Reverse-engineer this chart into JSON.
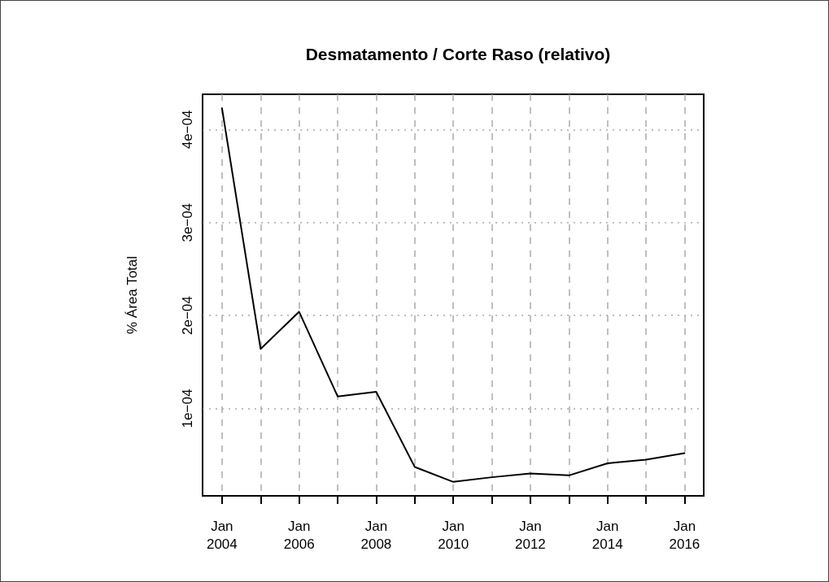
{
  "chart_data": {
    "type": "line",
    "title": "Desmatamento / Corte Raso (relativo)",
    "ylabel": "% Área Total",
    "x": [
      "2004-01",
      "2005-01",
      "2006-01",
      "2007-01",
      "2008-01",
      "2009-01",
      "2010-01",
      "2011-01",
      "2012-01",
      "2013-01",
      "2014-01",
      "2015-01",
      "2016-01"
    ],
    "series": [
      {
        "color": "#000000",
        "values": [
          0.000423,
          0.000164,
          0.000204,
          0.000113,
          0.000118,
          3.7e-05,
          2.1e-05,
          2.6e-05,
          3e-05,
          2.8e-05,
          4.1e-05,
          4.5e-05,
          5.2e-05
        ]
      }
    ],
    "xlim": [
      "2003-07",
      "2016-07"
    ],
    "xticks": [
      {
        "value": "2004-01",
        "label": "Jan\n2004"
      },
      {
        "value": "2005-01",
        "label": null
      },
      {
        "value": "2006-01",
        "label": "Jan\n2006"
      },
      {
        "value": "2007-01",
        "label": null
      },
      {
        "value": "2008-01",
        "label": "Jan\n2008"
      },
      {
        "value": "2009-01",
        "label": null
      },
      {
        "value": "2010-01",
        "label": "Jan\n2010"
      },
      {
        "value": "2011-01",
        "label": null
      },
      {
        "value": "2012-01",
        "label": "Jan\n2012"
      },
      {
        "value": "2013-01",
        "label": null
      },
      {
        "value": "2014-01",
        "label": "Jan\n2014"
      },
      {
        "value": "2015-01",
        "label": null
      },
      {
        "value": "2016-01",
        "label": "Jan\n2016"
      }
    ],
    "ylim": [
      6e-06,
      0.000438
    ],
    "yticks": [
      {
        "value": 0.0001,
        "label": "1e−04"
      },
      {
        "value": 0.0002,
        "label": "2e−04"
      },
      {
        "value": 0.0003,
        "label": "3e−04"
      },
      {
        "value": 0.0004,
        "label": "4e−04"
      }
    ],
    "grid": true,
    "marker": "none",
    "line_style": "solid"
  }
}
